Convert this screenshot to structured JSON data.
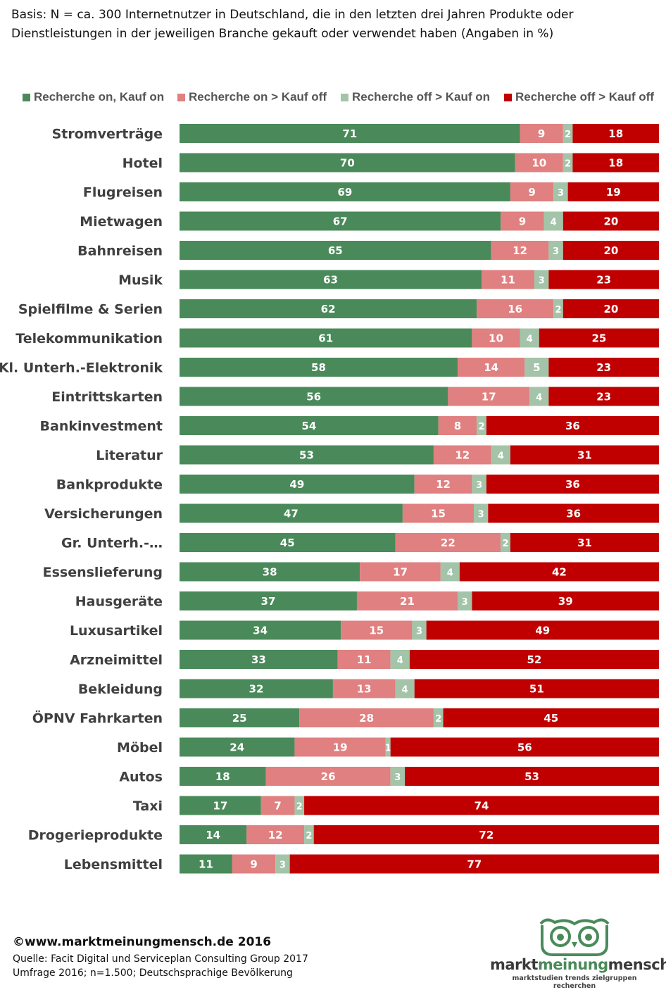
{
  "subtitle_line1": "Basis: N = ca. 300 Internetnutzer in Deutschland, die in den letzten drei Jahren Produkte oder",
  "subtitle_line2": "Dienstleistungen in der jeweiligen Branche gekauft oder verwendet haben (Angaben in %)",
  "footer": {
    "copyright": "©www.marktmeinungmensch.de 2016",
    "source_line1": "Quelle:  Facit Digital und Serviceplan Consulting Group 2017",
    "source_line2": "Umfrage 2016; n=1.500; Deutschsprachige Bevölkerung"
  },
  "logo": {
    "word1": "markt",
    "word2": "meinung",
    "word3": "mensch",
    "tagline": "marktstudien trends zielgruppen recherchen"
  },
  "chart_data": {
    "type": "bar",
    "orientation": "horizontal",
    "stacked": true,
    "title": "",
    "xlabel": "",
    "ylabel": "",
    "xlim": [
      0,
      100
    ],
    "grid": false,
    "legend_position": "top",
    "categories": [
      "Stromverträge",
      "Hotel",
      "Flugreisen",
      "Mietwagen",
      "Bahnreisen",
      "Musik",
      "Spielfilme & Serien",
      "Telekommunikation",
      "Kl. Unterh.-Elektronik",
      "Eintrittskarten",
      "Bankinvestment",
      "Literatur",
      "Bankprodukte",
      "Versicherungen",
      "Gr. Unterh.-…",
      "Essenslieferung",
      "Hausgeräte",
      "Luxusartikel",
      "Arzneimittel",
      "Bekleidung",
      "ÖPNV Fahrkarten",
      "Möbel",
      "Autos",
      "Taxi",
      "Drogerieprodukte",
      "Lebensmittel"
    ],
    "series": [
      {
        "name": "Recherche on, Kauf on",
        "color": "#4a8a5a",
        "values": [
          71,
          70,
          69,
          67,
          65,
          63,
          62,
          61,
          58,
          56,
          54,
          53,
          49,
          47,
          45,
          38,
          37,
          34,
          33,
          32,
          25,
          24,
          18,
          17,
          14,
          11
        ]
      },
      {
        "name": "Recherche on > Kauf off",
        "color": "#e08080",
        "values": [
          9,
          10,
          9,
          9,
          12,
          11,
          16,
          10,
          14,
          17,
          8,
          12,
          12,
          15,
          22,
          17,
          21,
          15,
          11,
          13,
          28,
          19,
          26,
          7,
          12,
          9
        ]
      },
      {
        "name": "Recherche off > Kauf on",
        "color": "#a3c4a8",
        "values": [
          2,
          2,
          3,
          4,
          3,
          3,
          2,
          4,
          5,
          4,
          2,
          4,
          3,
          3,
          2,
          4,
          3,
          3,
          4,
          4,
          2,
          1,
          3,
          2,
          2,
          3
        ]
      },
      {
        "name": "Recherche off > Kauf off",
        "color": "#c00000",
        "values": [
          18,
          18,
          19,
          20,
          20,
          23,
          20,
          25,
          23,
          23,
          36,
          31,
          36,
          36,
          31,
          42,
          39,
          49,
          52,
          51,
          45,
          56,
          53,
          74,
          72,
          77
        ]
      }
    ]
  }
}
